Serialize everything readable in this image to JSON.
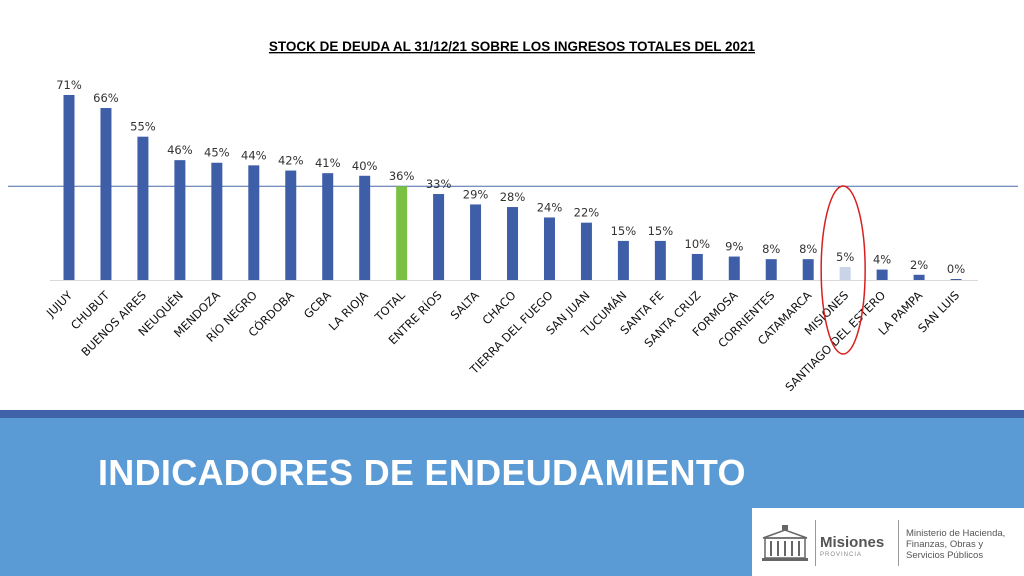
{
  "chart_data": {
    "type": "bar",
    "title": "STOCK DE DEUDA AL 31/12/21 SOBRE LOS INGRESOS TOTALES DEL 2021",
    "categories": [
      "JUJUY",
      "CHUBUT",
      "BUENOS AIRES",
      "NEUQUÉN",
      "MENDOZA",
      "RÍO NEGRO",
      "CÓRDOBA",
      "GCBA",
      "LA RIOJA",
      "TOTAL",
      "ENTRE RÍOS",
      "SALTA",
      "CHACO",
      "TIERRA DEL FUEGO",
      "SAN JUAN",
      "TUCUMÁN",
      "SANTA FE",
      "SANTA CRUZ",
      "FORMOSA",
      "CORRIENTES",
      "CATAMARCA",
      "MISIONES",
      "SANTIAGO DEL ESTERO",
      "LA PAMPA",
      "SAN LUIS"
    ],
    "values": [
      71,
      66,
      55,
      46,
      45,
      44,
      42,
      41,
      40,
      36,
      33,
      29,
      28,
      24,
      22,
      15,
      15,
      10,
      9,
      8,
      8,
      5,
      4,
      2,
      0
    ],
    "value_labels": [
      "71%",
      "66%",
      "55%",
      "46%",
      "45%",
      "44%",
      "42%",
      "41%",
      "40%",
      "36%",
      "33%",
      "29%",
      "28%",
      "24%",
      "22%",
      "15%",
      "15%",
      "10%",
      "9%",
      "8%",
      "8%",
      "5%",
      "4%",
      "2%",
      "0%"
    ],
    "reference_line": 36,
    "highlight": {
      "total_index": 9,
      "misiones_index": 21
    },
    "ylim": [
      0,
      71
    ],
    "xlabel": "",
    "ylabel": "",
    "legend": "none",
    "grid": false,
    "colors": {
      "bar": "#3f5ea8",
      "total": "#7ac143",
      "misiones": "#c9d4e8",
      "reference": "#4a6aa8",
      "circle": "#d62020"
    }
  },
  "heading": "INDICADORES DE ENDEUDAMIENTO",
  "logo": {
    "name": "Misiones",
    "sub": "PROVINCIA",
    "ministry_line1": "Ministerio de Hacienda,",
    "ministry_line2": "Finanzas, Obras y",
    "ministry_line3": "Servicios Públicos"
  },
  "colors": {
    "band": "#5b9bd5",
    "band_top": "#3f62a8",
    "heading_text": "#ffffff"
  }
}
